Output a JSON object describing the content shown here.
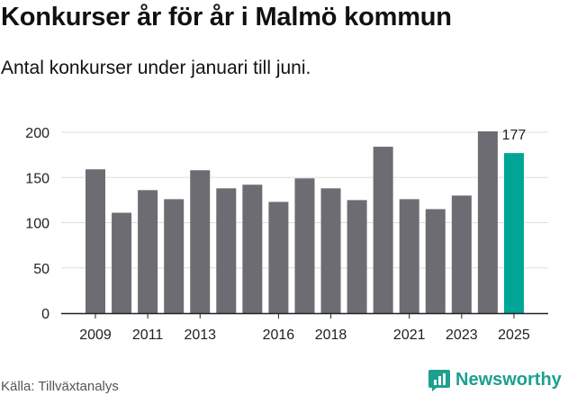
{
  "header": {
    "title": "Konkurser år för år i Malmö kommun",
    "subtitle": "Antal konkurser under januari till juni."
  },
  "footer": {
    "source": "Källa: Tillväxtanalys",
    "brand": "Newsworthy"
  },
  "colors": {
    "bar": "#6d6c72",
    "highlight": "#00a596",
    "grid": "#dddddd",
    "brand": "#1e9f8f"
  },
  "chart_data": {
    "type": "bar",
    "categories": [
      "2009",
      "2010",
      "2011",
      "2012",
      "2013",
      "2014",
      "2015",
      "2016",
      "2017",
      "2018",
      "2019",
      "2020",
      "2021",
      "2022",
      "2023",
      "2024",
      "2025"
    ],
    "x_tick_labels": [
      "2009",
      "",
      "2011",
      "",
      "2013",
      "",
      "",
      "2016",
      "",
      "2018",
      "",
      "",
      "2021",
      "",
      "2023",
      "",
      "2025"
    ],
    "values": [
      159,
      111,
      136,
      126,
      158,
      138,
      142,
      123,
      149,
      138,
      125,
      184,
      126,
      115,
      130,
      201,
      177
    ],
    "highlight_index": 16,
    "data_labels": {
      "16": "177"
    },
    "y_ticks": [
      0,
      50,
      100,
      150,
      200
    ],
    "ylim": [
      0,
      200
    ],
    "grid": true,
    "legend": "none"
  }
}
